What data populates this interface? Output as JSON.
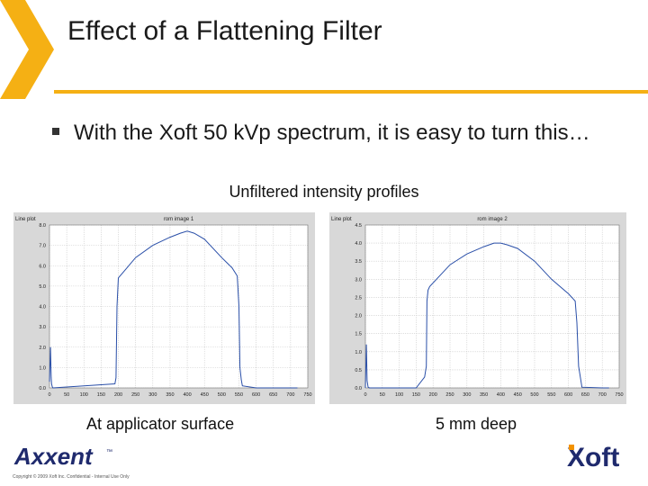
{
  "slide": {
    "title": "Effect of a Flattening Filter",
    "bullet": "With the Xoft 50 kVp spectrum, it is easy to turn this…",
    "subtitle": "Unfiltered intensity profiles",
    "caption_left": "At applicator surface",
    "caption_right": "5 mm deep",
    "copyright": "Copyright © 2009 Xoft Inc. Confidential - Internal Use Only",
    "logo_left_text": "Axxent",
    "logo_left_tm": "™",
    "logo_right_text": "Xoft"
  },
  "colors": {
    "accent": "#f5b014",
    "plot_line": "#2a4fa8",
    "logo_blue": "#1f2a6d",
    "logo_orange": "#f39200"
  },
  "chart_data": [
    {
      "type": "line",
      "title": "Line plot",
      "subtitle": "rom image 1",
      "xlim": [
        0,
        750
      ],
      "ylim": [
        0,
        8
      ],
      "xticks": [
        "0",
        "50",
        "100",
        "150",
        "200",
        "250",
        "300",
        "350",
        "400",
        "450",
        "500",
        "550",
        "600",
        "650",
        "700",
        "750"
      ],
      "yticks": [
        "0.0",
        "1.0",
        "2.0",
        "3.0",
        "4.0",
        "5.0",
        "6.0",
        "7.0",
        "8.0"
      ],
      "x": [
        0,
        3,
        5,
        6,
        8,
        10,
        190,
        193,
        196,
        200,
        220,
        250,
        300,
        350,
        380,
        400,
        420,
        450,
        500,
        530,
        545,
        550,
        553,
        557,
        560,
        600,
        640,
        660,
        700,
        720
      ],
      "y": [
        0.3,
        2.0,
        0.5,
        0.2,
        0.05,
        0.0,
        0.2,
        0.5,
        4.0,
        5.4,
        5.8,
        6.4,
        7.0,
        7.4,
        7.6,
        7.7,
        7.6,
        7.3,
        6.4,
        5.9,
        5.5,
        4.0,
        1.0,
        0.4,
        0.1,
        0.0,
        0.0,
        0.0,
        0.0,
        0.0
      ]
    },
    {
      "type": "line",
      "title": "Line plot",
      "subtitle": "rom image 2",
      "xlim": [
        0,
        750
      ],
      "ylim": [
        0,
        4.5
      ],
      "xticks": [
        "0",
        "50",
        "100",
        "150",
        "200",
        "250",
        "300",
        "350",
        "400",
        "450",
        "500",
        "550",
        "600",
        "650",
        "700",
        "750"
      ],
      "yticks": [
        "0.0",
        "0.5",
        "1.0",
        "1.5",
        "2.0",
        "2.5",
        "3.0",
        "3.5",
        "4.0",
        "4.5"
      ],
      "x": [
        0,
        3,
        5,
        8,
        12,
        150,
        175,
        180,
        182,
        185,
        190,
        220,
        250,
        300,
        350,
        380,
        400,
        420,
        450,
        500,
        550,
        600,
        620,
        625,
        630,
        640,
        700,
        720
      ],
      "y": [
        0.0,
        1.2,
        0.2,
        0.02,
        0.0,
        0.0,
        0.3,
        0.6,
        2.4,
        2.7,
        2.8,
        3.1,
        3.4,
        3.7,
        3.9,
        4.0,
        4.0,
        3.95,
        3.85,
        3.5,
        3.0,
        2.6,
        2.4,
        1.8,
        0.6,
        0.02,
        0.0,
        0.0
      ]
    }
  ]
}
